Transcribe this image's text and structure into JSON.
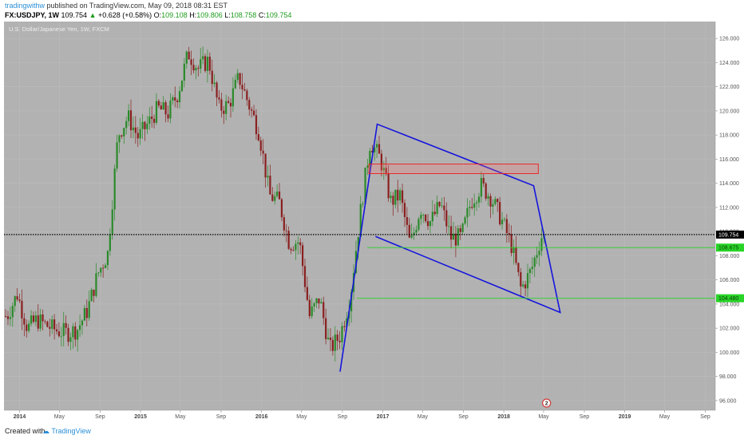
{
  "header": {
    "author": "tradingwithw",
    "published_text": "published on TradingView.com, May 09, 2018 08:31 EST",
    "symbol": "FX:USDJPY, 1W",
    "last": "109.754",
    "change": "+0.628 (+0.58%)",
    "open_label": "O:",
    "open": "109.108",
    "high_label": "H:",
    "high": "109.806",
    "low_label": "L:",
    "low": "108.758",
    "close_label": "C:",
    "close": "109.754"
  },
  "footer": {
    "created_with": "Created with",
    "brand": "TradingView"
  },
  "chart_data": {
    "type": "candlestick",
    "title": "U.S. Dollar/Japanese Yen, 1W, FXCM",
    "ylim": [
      95.2,
      127.4
    ],
    "xlim": [
      "2013-11-15",
      "2019-10-01"
    ],
    "y_ticks": [
      "96.000",
      "98.000",
      "100.000",
      "102.000",
      "104.000",
      "106.000",
      "108.000",
      "110.000",
      "112.000",
      "114.000",
      "116.000",
      "118.000",
      "120.000",
      "122.000",
      "124.000",
      "126.000"
    ],
    "x_ticks": [
      {
        "label": "2014",
        "date": "2014-01-01"
      },
      {
        "label": "May",
        "date": "2014-05-01"
      },
      {
        "label": "Sep",
        "date": "2014-09-01"
      },
      {
        "label": "2015",
        "date": "2015-01-01"
      },
      {
        "label": "May",
        "date": "2015-05-01"
      },
      {
        "label": "Sep",
        "date": "2015-09-01"
      },
      {
        "label": "2016",
        "date": "2016-01-01"
      },
      {
        "label": "May",
        "date": "2016-05-01"
      },
      {
        "label": "Sep",
        "date": "2016-09-01"
      },
      {
        "label": "2017",
        "date": "2017-01-01"
      },
      {
        "label": "May",
        "date": "2017-05-01"
      },
      {
        "label": "Sep",
        "date": "2017-09-01"
      },
      {
        "label": "2018",
        "date": "2018-01-01"
      },
      {
        "label": "May",
        "date": "2018-05-01"
      },
      {
        "label": "Sep",
        "date": "2018-09-01"
      },
      {
        "label": "2019",
        "date": "2019-01-01"
      },
      {
        "label": "May",
        "date": "2019-05-01"
      },
      {
        "label": "Sep",
        "date": "2019-09-01"
      }
    ],
    "price_path": [
      [
        "2013-12-01",
        103.0
      ],
      [
        "2014-01-01",
        104.8
      ],
      [
        "2014-02-01",
        102.0
      ],
      [
        "2014-03-01",
        102.7
      ],
      [
        "2014-04-01",
        102.2
      ],
      [
        "2014-05-01",
        101.8
      ],
      [
        "2014-06-01",
        101.6
      ],
      [
        "2014-07-01",
        101.9
      ],
      [
        "2014-08-01",
        103.5
      ],
      [
        "2014-09-01",
        106.5
      ],
      [
        "2014-10-01",
        108.2
      ],
      [
        "2014-11-01",
        118.0
      ],
      [
        "2014-12-01",
        119.5
      ],
      [
        "2015-01-01",
        117.8
      ],
      [
        "2015-02-01",
        119.0
      ],
      [
        "2015-03-01",
        120.2
      ],
      [
        "2015-04-01",
        119.8
      ],
      [
        "2015-05-01",
        121.5
      ],
      [
        "2015-06-01",
        124.8
      ],
      [
        "2015-07-01",
        123.5
      ],
      [
        "2015-08-01",
        124.2
      ],
      [
        "2015-09-01",
        120.2
      ],
      [
        "2015-10-01",
        120.5
      ],
      [
        "2015-11-01",
        122.8
      ],
      [
        "2015-12-01",
        120.5
      ],
      [
        "2016-01-01",
        118.2
      ],
      [
        "2016-02-01",
        113.0
      ],
      [
        "2016-03-01",
        112.5
      ],
      [
        "2016-04-01",
        109.0
      ],
      [
        "2016-05-01",
        109.2
      ],
      [
        "2016-06-01",
        103.0
      ],
      [
        "2016-07-01",
        104.5
      ],
      [
        "2016-08-01",
        100.2
      ],
      [
        "2016-09-01",
        101.4
      ],
      [
        "2016-10-01",
        104.5
      ],
      [
        "2016-11-01",
        111.5
      ],
      [
        "2016-12-01",
        117.5
      ],
      [
        "2017-01-01",
        116.0
      ],
      [
        "2017-02-01",
        112.5
      ],
      [
        "2017-03-01",
        113.0
      ],
      [
        "2017-04-01",
        108.8
      ],
      [
        "2017-05-01",
        112.0
      ],
      [
        "2017-06-01",
        110.8
      ],
      [
        "2017-07-01",
        112.3
      ],
      [
        "2017-08-01",
        109.5
      ],
      [
        "2017-09-01",
        109.5
      ],
      [
        "2017-10-01",
        112.5
      ],
      [
        "2017-11-01",
        113.8
      ],
      [
        "2017-12-01",
        112.8
      ],
      [
        "2018-01-01",
        111.0
      ],
      [
        "2018-02-01",
        108.8
      ],
      [
        "2018-03-01",
        105.2
      ],
      [
        "2018-04-01",
        106.8
      ],
      [
        "2018-05-01",
        109.6
      ]
    ],
    "drawings": [
      {
        "type": "channel",
        "points": [
          [
            "2016-08-25",
            98.4
          ],
          [
            "2016-12-15",
            118.9
          ],
          [
            "2018-04-01",
            113.8
          ],
          [
            "2018-06-20",
            103.3
          ],
          [
            "2018-03-15",
            104.4
          ],
          [
            "2016-12-10",
            109.6
          ]
        ],
        "color": "#1515dd"
      },
      {
        "type": "rectangle",
        "x1": "2016-11-20",
        "x2": "2018-04-15",
        "y1": 114.8,
        "y2": 115.6,
        "color": "#ee1c1c",
        "fill": "rgba(255,120,120,0.25)"
      },
      {
        "type": "hline",
        "y": 108.675,
        "from": "2016-11-15",
        "color": "#28d428",
        "label": "108.675"
      },
      {
        "type": "hline",
        "y": 104.48,
        "from": "2016-10-15",
        "color": "#28d428",
        "label": "104.480"
      },
      {
        "type": "hline",
        "y": 109.754,
        "from": "2013-11-15",
        "color": "#000000",
        "label": "109.754",
        "style": "dotted"
      }
    ],
    "event_marker": {
      "date": "2018-05-10",
      "label": "2"
    },
    "colors": {
      "background": "#b2b2b2",
      "up": "#2a8a2a",
      "down": "#8a2020",
      "channel": "#1515dd",
      "zone": "#ee1c1c",
      "support": "#28d428",
      "price_line": "#000000",
      "axis_bg": "#ffffff"
    }
  }
}
